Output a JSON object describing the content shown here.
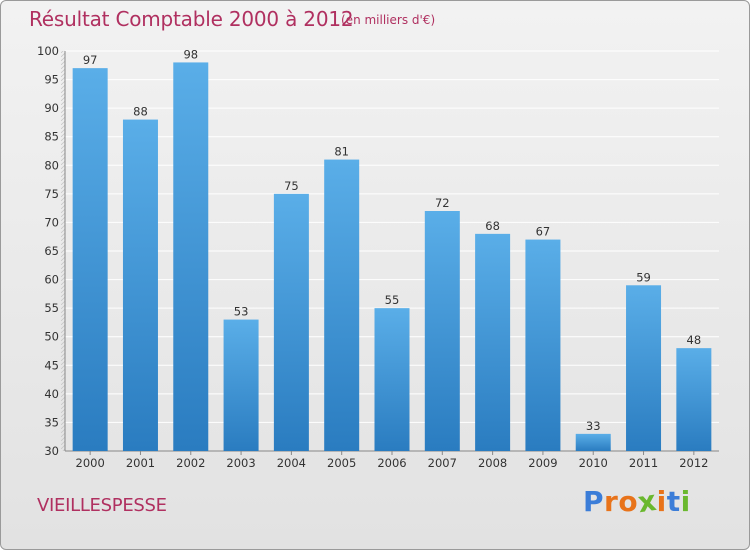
{
  "header": {
    "title": "Résultat Comptable 2000 à 2012",
    "subtitle": "(en milliers d'€)"
  },
  "footer": {
    "commune": "VIEILLESPESSE",
    "logo": {
      "letters": [
        "P",
        "r",
        "o",
        "x",
        "i",
        "t",
        "i"
      ]
    }
  },
  "colors": {
    "title": "#b03060",
    "bar_light": "#5aaee8",
    "bar_dark": "#2a7cc0",
    "logo": [
      "#3b7dd8",
      "#e8731a",
      "#e8731a",
      "#6ab82e",
      "#e8731a",
      "#3b7dd8",
      "#6ab82e"
    ]
  },
  "chart_data": {
    "type": "bar",
    "title": "Résultat Comptable 2000 à 2012",
    "subtitle": "(en milliers d'€)",
    "categories": [
      "2000",
      "2001",
      "2002",
      "2003",
      "2004",
      "2005",
      "2006",
      "2007",
      "2008",
      "2009",
      "2010",
      "2011",
      "2012"
    ],
    "values": [
      97,
      88,
      98,
      53,
      75,
      81,
      55,
      72,
      68,
      67,
      33,
      59,
      48
    ],
    "ylim": [
      30,
      100
    ],
    "yticks": [
      30,
      35,
      40,
      45,
      50,
      55,
      60,
      65,
      70,
      75,
      80,
      85,
      90,
      95,
      100
    ],
    "xlabel": "",
    "ylabel": "",
    "grid": true
  }
}
